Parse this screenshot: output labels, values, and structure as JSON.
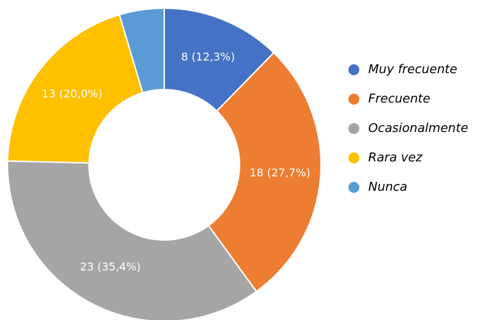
{
  "chart_data": {
    "type": "donut",
    "categories": [
      "Muy frecuente",
      "Frecuente",
      "Ocasionalmente",
      "Rara vez",
      "Nunca"
    ],
    "values": [
      8,
      18,
      23,
      13,
      3
    ],
    "value_labels": [
      "8 (12,3%)",
      "18 (27,7%)",
      "23 (35,4%)",
      "13 (20,0%)",
      null
    ],
    "colors": [
      "#4472c4",
      "#ed7d31",
      "#a5a5a5",
      "#ffc000",
      "#5b9bd5"
    ],
    "legend": "right"
  }
}
